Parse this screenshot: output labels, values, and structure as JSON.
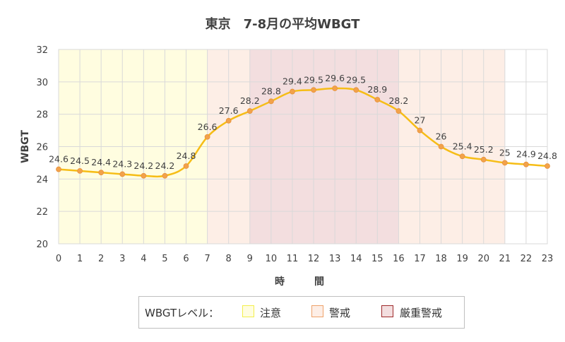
{
  "chart_data": {
    "type": "line",
    "title": "東京　7-8月の平均WBGT",
    "xlabel": "時　　　間",
    "ylabel": "WBGT",
    "x": [
      0,
      1,
      2,
      3,
      4,
      5,
      6,
      7,
      8,
      9,
      10,
      11,
      12,
      13,
      14,
      15,
      16,
      17,
      18,
      19,
      20,
      21,
      22,
      23
    ],
    "values": [
      24.6,
      24.5,
      24.4,
      24.3,
      24.2,
      24.2,
      24.8,
      26.6,
      27.6,
      28.2,
      28.8,
      29.4,
      29.5,
      29.6,
      29.5,
      28.9,
      28.2,
      27,
      26,
      25.4,
      25.2,
      25,
      24.9,
      24.8
    ],
    "data_labels": [
      "24.6",
      "24.5",
      "24.4",
      "24.3",
      "24.2",
      "24.2",
      "24.8",
      "26.6",
      "27.6",
      "28.2",
      "28.8",
      "29.4",
      "29.5",
      "29.6",
      "29.5",
      "28.9",
      "28.2",
      "27",
      "26",
      "25.4",
      "25.2",
      "25",
      "24.9",
      "24.8"
    ],
    "ylim": [
      20,
      32
    ],
    "yticks": [
      20,
      22,
      24,
      26,
      28,
      30,
      32
    ],
    "xlim": [
      0,
      23
    ],
    "grid": true,
    "line_color": "#f6bd16",
    "marker_color": "#f2a24b",
    "bands": [
      {
        "from": 0,
        "to": 7,
        "level": "注意",
        "color": "#fffde0"
      },
      {
        "from": 7,
        "to": 9,
        "level": "警戒",
        "color": "#fdeee6"
      },
      {
        "from": 9,
        "to": 16,
        "level": "厳重警戒",
        "color": "#f3dedf"
      },
      {
        "from": 16,
        "to": 21,
        "level": "警戒",
        "color": "#fdeee6"
      }
    ],
    "legend": {
      "title": "WBGTレベル：",
      "position": "bottom",
      "items": [
        {
          "label": "注意",
          "fill": "#fffde0",
          "border": "#f3ef4c"
        },
        {
          "label": "警戒",
          "fill": "#fdeee6",
          "border": "#eea26a"
        },
        {
          "label": "厳重警戒",
          "fill": "#f3dedf",
          "border": "#9e2a2b"
        }
      ]
    }
  }
}
